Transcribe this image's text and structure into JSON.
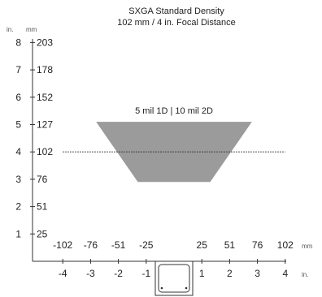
{
  "chart_data": {
    "type": "area",
    "title": "SXGA Standard Density",
    "subtitle": "102 mm / 4 in. Focal Distance",
    "y_units": {
      "inch": "in.",
      "mm": "mm"
    },
    "x_units": {
      "mm": "mm",
      "inch": "in."
    },
    "y_ticks": [
      {
        "in": "1",
        "mm": "25",
        "value": 1
      },
      {
        "in": "2",
        "mm": "51",
        "value": 2
      },
      {
        "in": "3",
        "mm": "76",
        "value": 3
      },
      {
        "in": "4",
        "mm": "102",
        "value": 4
      },
      {
        "in": "5",
        "mm": "127",
        "value": 5
      },
      {
        "in": "6",
        "mm": "152",
        "value": 6
      },
      {
        "in": "7",
        "mm": "178",
        "value": 7
      },
      {
        "in": "8",
        "mm": "203",
        "value": 8
      }
    ],
    "x_ticks": [
      {
        "mm": "-102",
        "in": "-4",
        "value": -4
      },
      {
        "mm": "-76",
        "in": "-3",
        "value": -3
      },
      {
        "mm": "-51",
        "in": "-2",
        "value": -2
      },
      {
        "mm": "-25",
        "in": "-1",
        "value": -1
      },
      {
        "mm": "25",
        "in": "1",
        "value": 1
      },
      {
        "mm": "51",
        "in": "2",
        "value": 2
      },
      {
        "mm": "76",
        "in": "3",
        "value": 3
      },
      {
        "mm": "102",
        "in": "4",
        "value": 4
      }
    ],
    "ylim": [
      0,
      8
    ],
    "xlim": [
      -4,
      4
    ],
    "series": [
      {
        "name": "5 mil 1D | 10 mil 2D",
        "color": "#9b9b9b",
        "polygon": [
          {
            "x": -2.8,
            "y": 5.1
          },
          {
            "x": 2.8,
            "y": 5.1
          },
          {
            "x": 1.3,
            "y": 2.9
          },
          {
            "x": -1.3,
            "y": 2.9
          }
        ]
      }
    ],
    "focal_line": {
      "y": 4,
      "x_from": -4.0,
      "x_to": 4.0,
      "style": "dotted"
    },
    "device_icon": "scanner-icon"
  }
}
